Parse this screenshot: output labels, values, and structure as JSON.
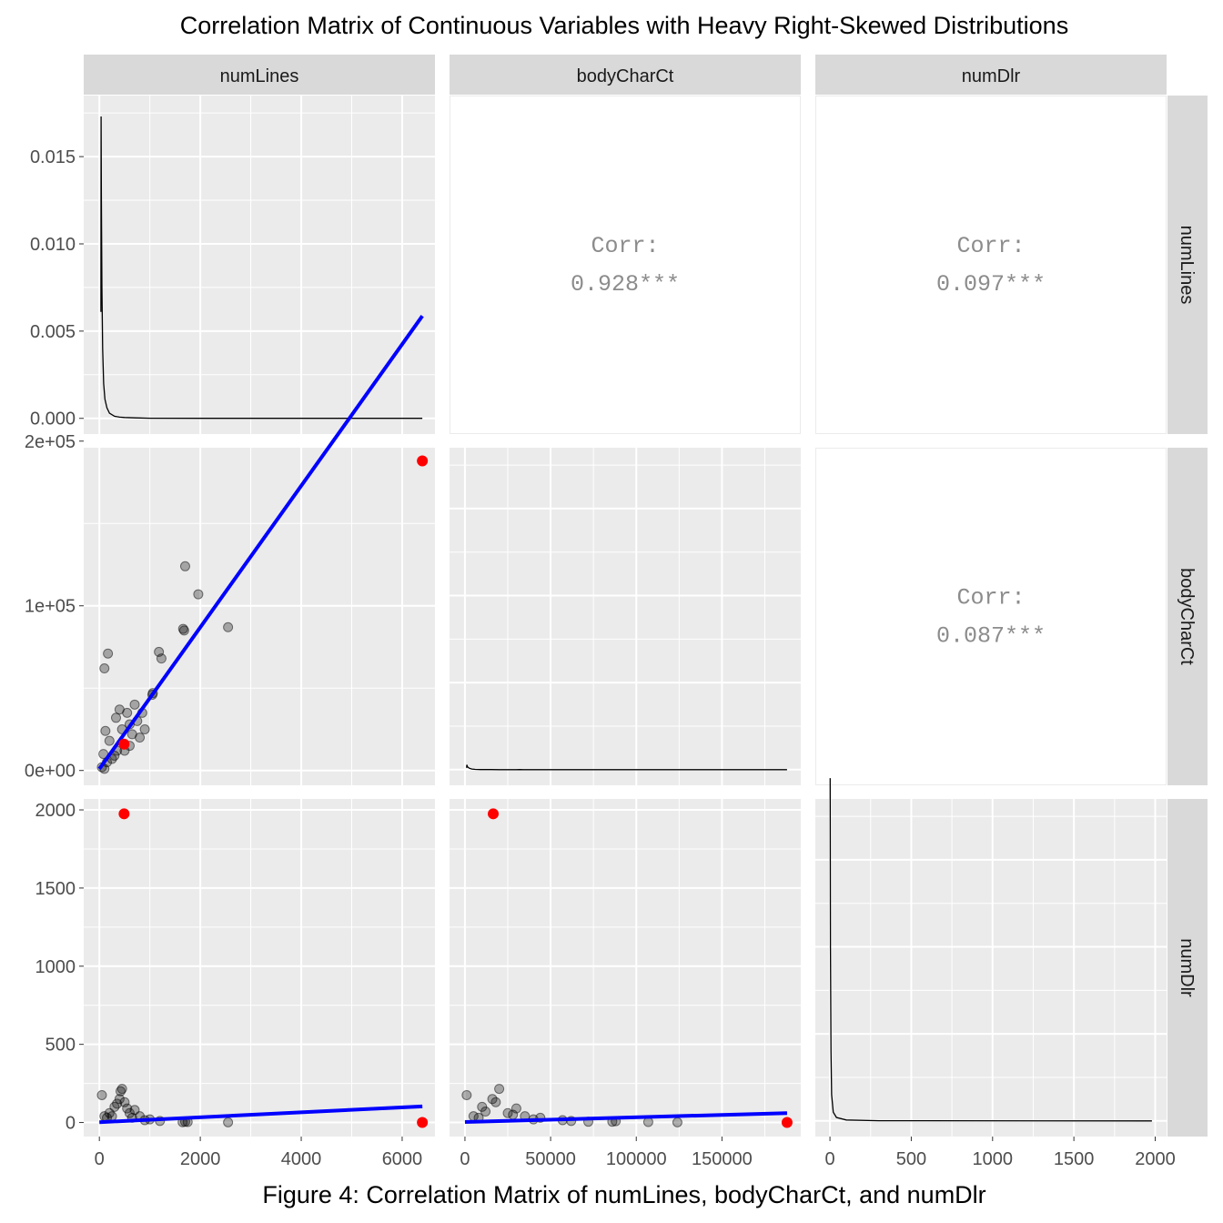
{
  "title": "Correlation Matrix of Continuous Variables with Heavy Right-Skewed Distributions",
  "caption": "Figure 4: Correlation Matrix of numLines, bodyCharCt, and numDlr",
  "colors": {
    "panel_bg": "#ebebeb",
    "strip_bg": "#d9d9d9",
    "grid": "#ffffff",
    "points": "#000000",
    "outlier": "#ff0000",
    "fit_line": "#0000ff",
    "fit_band": "#a0a0ff",
    "density_line": "#000000",
    "corr_text": "#8c8c8c"
  },
  "chart_data": {
    "type": "scatter",
    "layout": "scatterplot matrix: density on diagonal, scatter with linear fit below, correlation text above",
    "variables": [
      "numLines",
      "bodyCharCt",
      "numDlr"
    ],
    "axis_ranges": {
      "numLines": [
        -310,
        6650
      ],
      "bodyCharCt": [
        -9000,
        196000
      ],
      "numDlr": [
        -90,
        2070
      ]
    },
    "x_ticks": {
      "numLines": [
        "0",
        "2000",
        "4000",
        "6000"
      ],
      "bodyCharCt": [
        "0",
        "50000",
        "100000",
        "150000"
      ],
      "numDlr": [
        "0",
        "500",
        "1000",
        "1500",
        "2000"
      ]
    },
    "y_ticks": {
      "density": [
        "0.000",
        "0.005",
        "0.010",
        "0.015"
      ],
      "bodyCharCt": [
        "0e+00",
        "1e+05",
        "2e+05"
      ],
      "numDlr": [
        "0",
        "500",
        "1000",
        "1500",
        "2000"
      ]
    },
    "density_ylim": [
      -0.0009,
      0.0185
    ],
    "correlations": [
      {
        "row": "numLines",
        "col": "bodyCharCt",
        "label": "Corr:",
        "value": "0.928***"
      },
      {
        "row": "numLines",
        "col": "numDlr",
        "label": "Corr:",
        "value": "0.097***"
      },
      {
        "row": "bodyCharCt",
        "col": "numDlr",
        "label": "Corr:",
        "value": "0.087***"
      }
    ],
    "densities": {
      "numLines": [
        [
          30,
          0.0061
        ],
        [
          35,
          0.0173
        ],
        [
          40,
          0.0128
        ],
        [
          50,
          0.0075
        ],
        [
          65,
          0.004
        ],
        [
          85,
          0.002
        ],
        [
          110,
          0.0011
        ],
        [
          150,
          0.0006
        ],
        [
          200,
          0.0003
        ],
        [
          300,
          0.00012
        ],
        [
          400,
          7e-05
        ],
        [
          500,
          5e-05
        ],
        [
          700,
          3e-05
        ],
        [
          1000,
          1e-05
        ],
        [
          2000,
          2e-06
        ],
        [
          6400,
          0.0
        ]
      ],
      "bodyCharCt": [
        [
          1000,
          0.000105
        ],
        [
          1100,
          0.000278
        ],
        [
          1500,
          0.00016
        ],
        [
          2500,
          8.5e-05
        ],
        [
          4000,
          3.5e-05
        ],
        [
          6000,
          1.4e-05
        ],
        [
          9000,
          5e-06
        ],
        [
          15000,
          3e-06
        ],
        [
          20000,
          2e-06
        ],
        [
          30000,
          1.5e-06
        ],
        [
          32000,
          3.3e-06
        ],
        [
          34000,
          8e-07
        ],
        [
          50000,
          4e-07
        ],
        [
          80000,
          1e-07
        ],
        [
          188000,
          0.0
        ]
      ],
      "numDlr": [
        [
          1,
          0.0197
        ],
        [
          3,
          0.01
        ],
        [
          6,
          0.004
        ],
        [
          10,
          0.0015
        ],
        [
          20,
          0.0005
        ],
        [
          40,
          0.0002
        ],
        [
          100,
          5e-05
        ],
        [
          300,
          1e-05
        ],
        [
          1980,
          0.0
        ]
      ]
    },
    "scatter_numLines_bodyCharCt": {
      "points": [
        [
          100,
          62000
        ],
        [
          170,
          71000
        ],
        [
          1060,
          47000
        ],
        [
          1050,
          46000
        ],
        [
          1180,
          72000
        ],
        [
          1230,
          68000
        ],
        [
          1700,
          124000
        ],
        [
          1660,
          86000
        ],
        [
          1680,
          85000
        ],
        [
          1960,
          107000
        ],
        [
          2550,
          87000
        ],
        [
          800,
          20000
        ],
        [
          750,
          30000
        ],
        [
          600,
          15000
        ],
        [
          900,
          25000
        ],
        [
          400,
          37000
        ],
        [
          330,
          32000
        ],
        [
          200,
          18000
        ],
        [
          500,
          12000
        ],
        [
          700,
          40000
        ],
        [
          300,
          9000
        ],
        [
          150,
          5000
        ],
        [
          50,
          2000
        ],
        [
          100,
          1000
        ],
        [
          250,
          7000
        ],
        [
          650,
          22000
        ],
        [
          450,
          25000
        ],
        [
          550,
          35000
        ],
        [
          350,
          12000
        ],
        [
          120,
          24000
        ],
        [
          80,
          10000
        ],
        [
          600,
          28000
        ],
        [
          850,
          35000
        ]
      ],
      "outliers": [
        [
          6400,
          188000
        ],
        [
          490,
          16000
        ]
      ],
      "fit": [
        [
          0,
          1000
        ],
        [
          6400,
          276000
        ]
      ]
    },
    "scatter_numLines_numDlr": {
      "points": [
        [
          50,
          175
        ],
        [
          400,
          150
        ],
        [
          420,
          200
        ],
        [
          500,
          130
        ],
        [
          450,
          215
        ],
        [
          700,
          80
        ],
        [
          300,
          100
        ],
        [
          200,
          60
        ],
        [
          100,
          40
        ],
        [
          800,
          40
        ],
        [
          1000,
          20
        ],
        [
          1200,
          10
        ],
        [
          1700,
          5
        ],
        [
          1650,
          2
        ],
        [
          1750,
          3
        ],
        [
          2550,
          1
        ],
        [
          600,
          60
        ],
        [
          550,
          90
        ],
        [
          350,
          120
        ],
        [
          250,
          40
        ],
        [
          150,
          30
        ],
        [
          900,
          15
        ],
        [
          650,
          30
        ]
      ],
      "outliers": [
        [
          490,
          1975
        ],
        [
          6400,
          0
        ]
      ],
      "fit": [
        [
          0,
          2
        ],
        [
          6400,
          103
        ]
      ],
      "band_halfwidth_end": 12
    },
    "scatter_bodyCharCt_numDlr": {
      "points": [
        [
          1000,
          175
        ],
        [
          16000,
          150
        ],
        [
          20000,
          215
        ],
        [
          18000,
          130
        ],
        [
          30000,
          90
        ],
        [
          25000,
          60
        ],
        [
          10000,
          100
        ],
        [
          5000,
          40
        ],
        [
          44000,
          30
        ],
        [
          57000,
          15
        ],
        [
          72000,
          5
        ],
        [
          86000,
          5
        ],
        [
          88000,
          8
        ],
        [
          107000,
          3
        ],
        [
          124000,
          1
        ],
        [
          62000,
          10
        ],
        [
          40000,
          20
        ],
        [
          35000,
          40
        ],
        [
          12000,
          70
        ],
        [
          8000,
          30
        ],
        [
          28000,
          50
        ]
      ],
      "outliers": [
        [
          16500,
          1975
        ],
        [
          188000,
          0
        ]
      ],
      "fit": [
        [
          0,
          3
        ],
        [
          188000,
          60
        ]
      ],
      "band_halfwidth_end": 7
    }
  }
}
